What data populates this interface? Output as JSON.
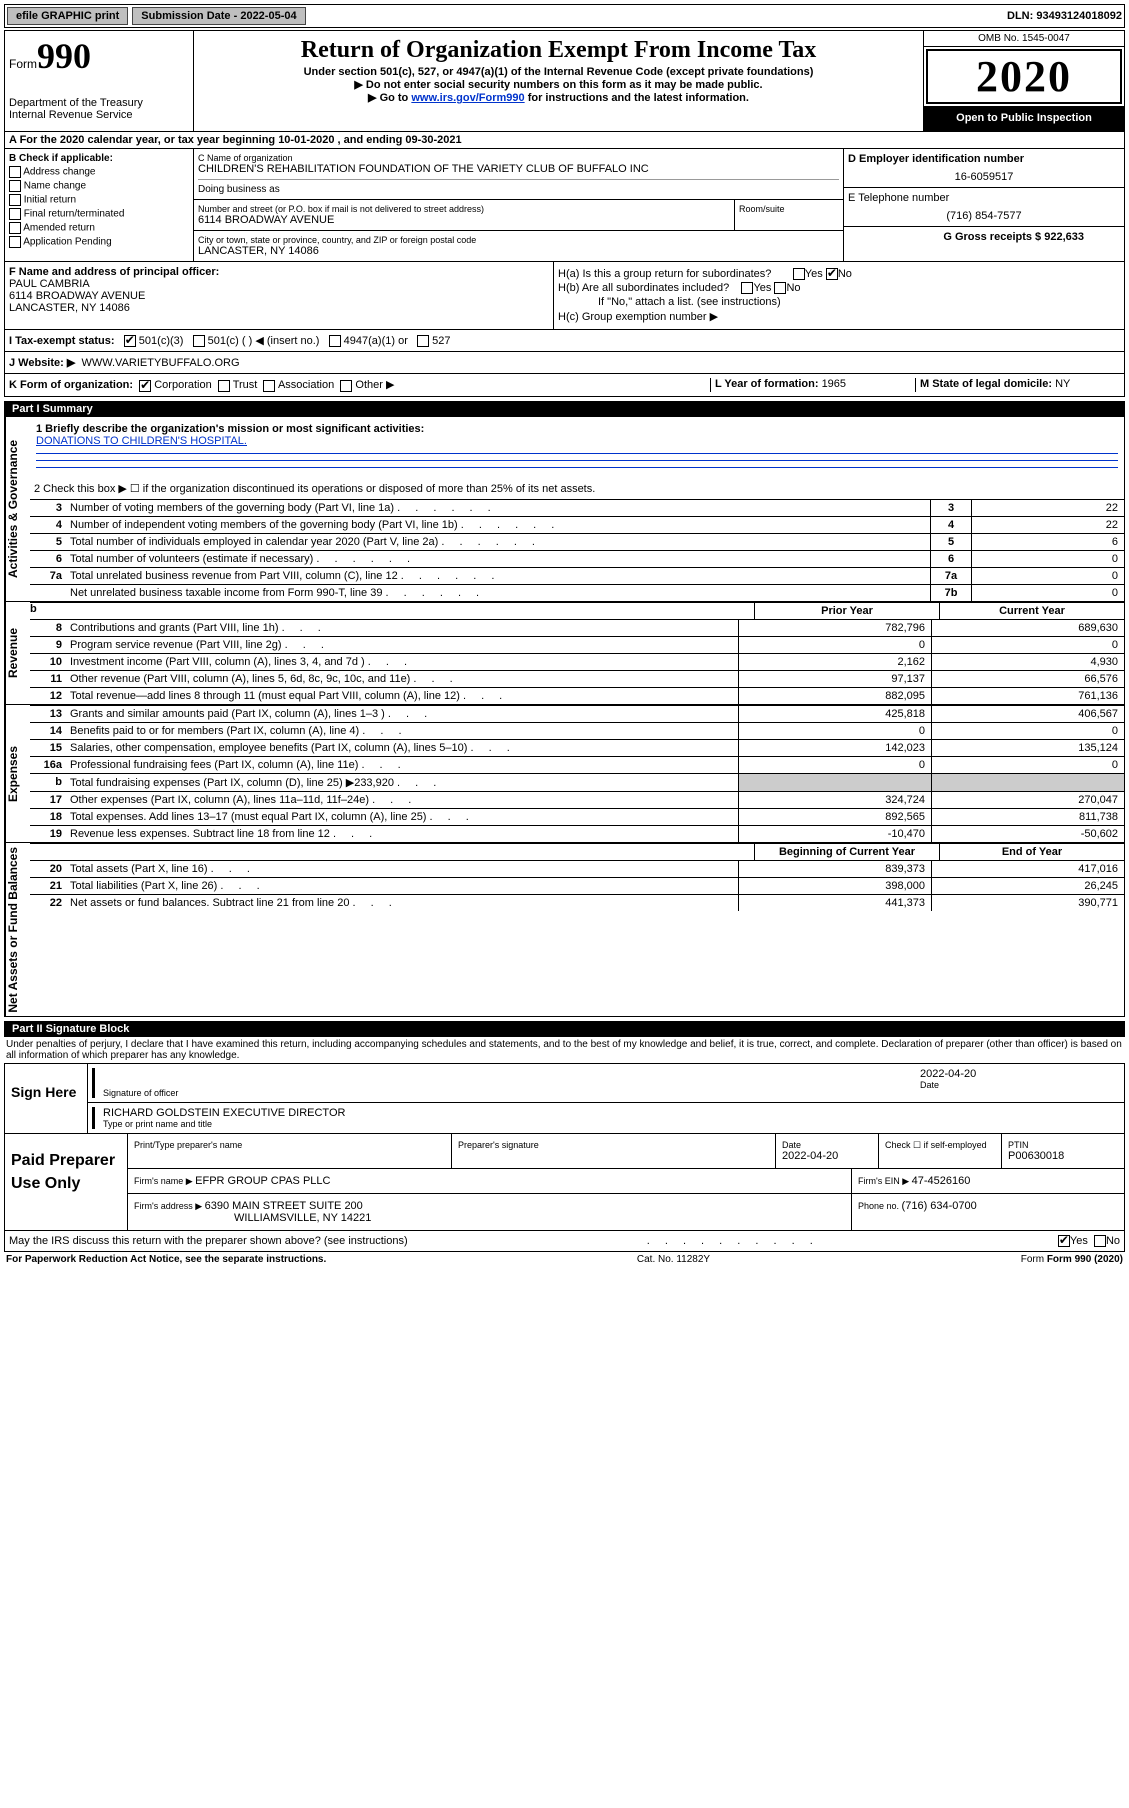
{
  "topbar": {
    "efile": "efile GRAPHIC print",
    "subdate_label": "Submission Date - ",
    "subdate": "2022-05-04",
    "dln_label": "DLN: ",
    "dln": "93493124018092"
  },
  "header": {
    "form_label": "Form",
    "form_no": "990",
    "dept": "Department of the Treasury\nInternal Revenue Service",
    "title": "Return of Organization Exempt From Income Tax",
    "sub1": "Under section 501(c), 527, or 4947(a)(1) of the Internal Revenue Code (except private foundations)",
    "sub2": "▶ Do not enter social security numbers on this form as it may be made public.",
    "sub3_pre": "▶ Go to ",
    "sub3_link": "www.irs.gov/Form990",
    "sub3_post": " for instructions and the latest information.",
    "omb": "OMB No. 1545-0047",
    "year": "2020",
    "open": "Open to Public Inspection"
  },
  "row_a": "A For the 2020 calendar year, or tax year beginning 10-01-2020  , and ending 09-30-2021",
  "section_b": {
    "label": "B Check if applicable:",
    "items": [
      "Address change",
      "Name change",
      "Initial return",
      "Final return/terminated",
      "Amended return",
      "Application Pending"
    ]
  },
  "section_c": {
    "name_label": "C Name of organization",
    "name": "CHILDREN'S REHABILITATION FOUNDATION OF THE VARIETY CLUB OF BUFFALO INC",
    "dba_label": "Doing business as",
    "street_label": "Number and street (or P.O. box if mail is not delivered to street address)",
    "street": "6114 BROADWAY AVENUE",
    "room_label": "Room/suite",
    "city_label": "City or town, state or province, country, and ZIP or foreign postal code",
    "city": "LANCASTER, NY  14086"
  },
  "section_d": {
    "label": "D Employer identification number",
    "value": "16-6059517"
  },
  "section_e": {
    "label": "E Telephone number",
    "value": "(716) 854-7577"
  },
  "section_g": {
    "label": "G Gross receipts $ ",
    "value": "922,633"
  },
  "section_f": {
    "label": "F  Name and address of principal officer:",
    "name": "PAUL CAMBRIA",
    "addr1": "6114 BROADWAY AVENUE",
    "addr2": "LANCASTER, NY  14086"
  },
  "section_h": {
    "ha": "H(a)  Is this a group return for subordinates?",
    "hb": "H(b)  Are all subordinates included?",
    "hb_note": "If \"No,\" attach a list. (see instructions)",
    "hc": "H(c)  Group exemption number ▶"
  },
  "tax_status": {
    "label": "I  Tax-exempt status:",
    "opts": [
      "501(c)(3)",
      "501(c) (  ) ◀ (insert no.)",
      "4947(a)(1) or",
      "527"
    ]
  },
  "website": {
    "label": "J  Website: ▶",
    "value": "WWW.VARIETYBUFFALO.ORG"
  },
  "row_k": {
    "label": "K Form of organization:",
    "opts": [
      "Corporation",
      "Trust",
      "Association",
      "Other ▶"
    ],
    "l_label": "L Year of formation: ",
    "l_val": "1965",
    "m_label": "M State of legal domicile: ",
    "m_val": "NY"
  },
  "part1": {
    "bar": "Part I      Summary",
    "side_gov": "Activities & Governance",
    "side_rev": "Revenue",
    "side_exp": "Expenses",
    "side_net": "Net Assets or Fund Balances",
    "mission_label": "1  Briefly describe the organization's mission or most significant activities:",
    "mission": "DONATIONS TO CHILDREN'S HOSPITAL.",
    "line2": "2   Check this box ▶ ☐  if the organization discontinued its operations or disposed of more than 25% of its net assets.",
    "rows_gov": [
      {
        "n": "3",
        "t": "Number of voting members of the governing body (Part VI, line 1a)",
        "c": "3",
        "v": "22"
      },
      {
        "n": "4",
        "t": "Number of independent voting members of the governing body (Part VI, line 1b)",
        "c": "4",
        "v": "22"
      },
      {
        "n": "5",
        "t": "Total number of individuals employed in calendar year 2020 (Part V, line 2a)",
        "c": "5",
        "v": "6"
      },
      {
        "n": "6",
        "t": "Total number of volunteers (estimate if necessary)",
        "c": "6",
        "v": "0"
      },
      {
        "n": "7a",
        "t": "Total unrelated business revenue from Part VIII, column (C), line 12",
        "c": "7a",
        "v": "0"
      },
      {
        "n": "",
        "t": "Net unrelated business taxable income from Form 990-T, line 39",
        "c": "7b",
        "v": "0"
      }
    ],
    "rev_head": {
      "b": "b",
      "prior": "Prior Year",
      "current": "Current Year"
    },
    "rows_rev": [
      {
        "n": "8",
        "t": "Contributions and grants (Part VIII, line 1h)",
        "p": "782,796",
        "c": "689,630"
      },
      {
        "n": "9",
        "t": "Program service revenue (Part VIII, line 2g)",
        "p": "0",
        "c": "0"
      },
      {
        "n": "10",
        "t": "Investment income (Part VIII, column (A), lines 3, 4, and 7d )",
        "p": "2,162",
        "c": "4,930"
      },
      {
        "n": "11",
        "t": "Other revenue (Part VIII, column (A), lines 5, 6d, 8c, 9c, 10c, and 11e)",
        "p": "97,137",
        "c": "66,576"
      },
      {
        "n": "12",
        "t": "Total revenue—add lines 8 through 11 (must equal Part VIII, column (A), line 12)",
        "p": "882,095",
        "c": "761,136"
      }
    ],
    "rows_exp": [
      {
        "n": "13",
        "t": "Grants and similar amounts paid (Part IX, column (A), lines 1–3 )",
        "p": "425,818",
        "c": "406,567"
      },
      {
        "n": "14",
        "t": "Benefits paid to or for members (Part IX, column (A), line 4)",
        "p": "0",
        "c": "0"
      },
      {
        "n": "15",
        "t": "Salaries, other compensation, employee benefits (Part IX, column (A), lines 5–10)",
        "p": "142,023",
        "c": "135,124"
      },
      {
        "n": "16a",
        "t": "Professional fundraising fees (Part IX, column (A), line 11e)",
        "p": "0",
        "c": "0"
      },
      {
        "n": "b",
        "t": "Total fundraising expenses (Part IX, column (D), line 25) ▶233,920",
        "p": "",
        "c": ""
      },
      {
        "n": "17",
        "t": "Other expenses (Part IX, column (A), lines 11a–11d, 11f–24e)",
        "p": "324,724",
        "c": "270,047"
      },
      {
        "n": "18",
        "t": "Total expenses. Add lines 13–17 (must equal Part IX, column (A), line 25)",
        "p": "892,565",
        "c": "811,738"
      },
      {
        "n": "19",
        "t": "Revenue less expenses. Subtract line 18 from line 12",
        "p": "-10,470",
        "c": "-50,602"
      }
    ],
    "net_head": {
      "prior": "Beginning of Current Year",
      "current": "End of Year"
    },
    "rows_net": [
      {
        "n": "20",
        "t": "Total assets (Part X, line 16)",
        "p": "839,373",
        "c": "417,016"
      },
      {
        "n": "21",
        "t": "Total liabilities (Part X, line 26)",
        "p": "398,000",
        "c": "26,245"
      },
      {
        "n": "22",
        "t": "Net assets or fund balances. Subtract line 21 from line 20",
        "p": "441,373",
        "c": "390,771"
      }
    ]
  },
  "part2": {
    "bar": "Part II     Signature Block",
    "declare": "Under penalties of perjury, I declare that I have examined this return, including accompanying schedules and statements, and to the best of my knowledge and belief, it is true, correct, and complete. Declaration of preparer (other than officer) is based on all information of which preparer has any knowledge."
  },
  "sign": {
    "side": "Sign Here",
    "sig_officer": "Signature of officer",
    "date_label": "Date",
    "date": "2022-04-20",
    "name": "RICHARD GOLDSTEIN  EXECUTIVE DIRECTOR",
    "name_label": "Type or print name and title"
  },
  "paid": {
    "side": "Paid Preparer Use Only",
    "h1": "Print/Type preparer's name",
    "h2": "Preparer's signature",
    "h3": "Date",
    "h3v": "2022-04-20",
    "h4": "Check ☐ if self-employed",
    "h5": "PTIN",
    "h5v": "P00630018",
    "firm_label": "Firm's name    ▶ ",
    "firm": "EFPR GROUP CPAS PLLC",
    "ein_label": "Firm's EIN ▶ ",
    "ein": "47-4526160",
    "addr_label": "Firm's address ▶ ",
    "addr1": "6390 MAIN STREET SUITE 200",
    "addr2": "WILLIAMSVILLE, NY  14221",
    "phone_label": "Phone no. ",
    "phone": "(716) 634-0700",
    "discuss": "May the IRS discuss this return with the preparer shown above? (see instructions)"
  },
  "footer": {
    "left": "For Paperwork Reduction Act Notice, see the separate instructions.",
    "mid": "Cat. No. 11282Y",
    "right": "Form 990 (2020)"
  }
}
